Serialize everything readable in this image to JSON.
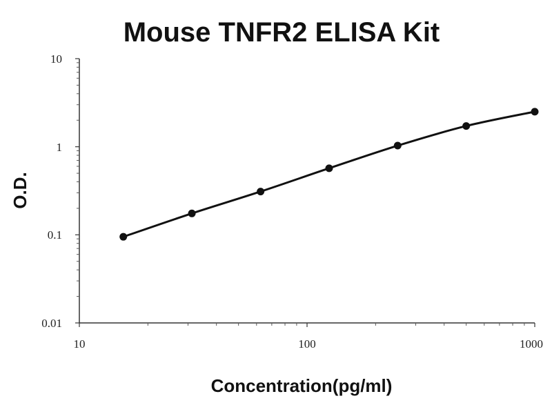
{
  "chart_data": {
    "type": "line",
    "title": "Mouse TNFR2 ELISA Kit",
    "xlabel": "Concentration(pg/ml)",
    "ylabel": "O.D.",
    "xscale": "log",
    "yscale": "log",
    "xlim": [
      10,
      1000
    ],
    "ylim": [
      0.01,
      10
    ],
    "x_ticks": [
      "10",
      "100",
      "1000"
    ],
    "y_ticks": [
      "10",
      "1",
      "0.1",
      "0.01"
    ],
    "grid": false,
    "legend": "none",
    "series": [
      {
        "x": [
          15.6,
          31.2,
          62.5,
          125,
          250,
          500,
          1000
        ],
        "y": [
          0.095,
          0.175,
          0.31,
          0.57,
          1.03,
          1.72,
          2.5
        ],
        "color": "#111111"
      }
    ]
  }
}
